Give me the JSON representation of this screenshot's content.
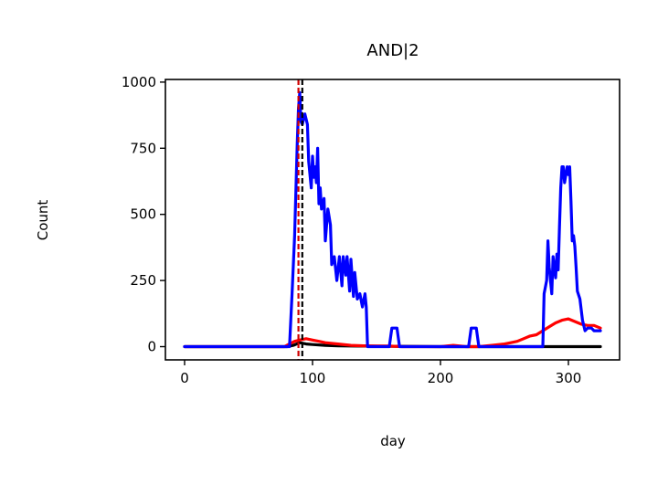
{
  "chart_data": {
    "type": "line",
    "title": "AND|2",
    "xlabel": "day",
    "ylabel": "Count",
    "xlim": [
      -15,
      340
    ],
    "ylim": [
      -50,
      1010
    ],
    "xticks": [
      0,
      100,
      200,
      300
    ],
    "yticks": [
      0,
      250,
      500,
      750,
      1000
    ],
    "xtick_labels": [
      "0",
      "100",
      "200",
      "300"
    ],
    "ytick_labels": [
      "0",
      "250",
      "500",
      "750",
      "1000"
    ],
    "grid": false,
    "legend": "none",
    "vlines": [
      {
        "x": 89,
        "color": "#d00000",
        "style": "dashed"
      },
      {
        "x": 92,
        "color": "#000000",
        "style": "dashed"
      }
    ],
    "series": [
      {
        "color": "#000000",
        "x": [
          0,
          80,
          85,
          90,
          95,
          100,
          110,
          120,
          140,
          200,
          300,
          325
        ],
        "values": [
          0,
          0,
          5,
          15,
          10,
          8,
          5,
          3,
          2,
          0,
          0,
          0
        ]
      },
      {
        "color": "#ff0000",
        "x": [
          0,
          78,
          82,
          86,
          90,
          95,
          100,
          105,
          110,
          120,
          130,
          140,
          150,
          160,
          170,
          180,
          200,
          210,
          220,
          230,
          240,
          250,
          255,
          260,
          265,
          270,
          275,
          280,
          285,
          290,
          295,
          300,
          305,
          310,
          315,
          320,
          325
        ],
        "values": [
          0,
          0,
          10,
          20,
          25,
          30,
          25,
          20,
          15,
          10,
          5,
          3,
          2,
          2,
          0,
          0,
          0,
          5,
          0,
          0,
          5,
          10,
          15,
          20,
          30,
          40,
          45,
          60,
          75,
          90,
          100,
          105,
          95,
          85,
          80,
          80,
          70
        ]
      },
      {
        "color": "#0000ff",
        "x": [
          0,
          82,
          84,
          86,
          88,
          89,
          90,
          91,
          92,
          94,
          96,
          97,
          99,
          100,
          101,
          102,
          103,
          104,
          105,
          106,
          107,
          109,
          110,
          112,
          114,
          115,
          117,
          119,
          121,
          123,
          124,
          126,
          127,
          129,
          130,
          132,
          133,
          135,
          137,
          139,
          141,
          142,
          143,
          145,
          150,
          160,
          162,
          164,
          166,
          168,
          170,
          172,
          175,
          180,
          190,
          200,
          210,
          215,
          222,
          224,
          226,
          228,
          230,
          232,
          240,
          250,
          260,
          270,
          280,
          281,
          283,
          284,
          285,
          287,
          288,
          290,
          291,
          292,
          293,
          294,
          295,
          296,
          297,
          299,
          300,
          301,
          302,
          303,
          304,
          305,
          306,
          307,
          309,
          311,
          313,
          315,
          318,
          320,
          325
        ],
        "values": [
          0,
          0,
          200,
          420,
          760,
          900,
          960,
          850,
          840,
          880,
          840,
          700,
          600,
          720,
          640,
          680,
          620,
          750,
          540,
          600,
          520,
          560,
          400,
          520,
          460,
          310,
          340,
          250,
          340,
          230,
          340,
          270,
          340,
          210,
          330,
          190,
          280,
          180,
          200,
          150,
          200,
          150,
          0,
          0,
          0,
          0,
          70,
          70,
          70,
          0,
          0,
          0,
          0,
          0,
          0,
          0,
          0,
          0,
          0,
          70,
          70,
          70,
          0,
          0,
          0,
          0,
          0,
          0,
          0,
          200,
          250,
          400,
          300,
          200,
          340,
          260,
          350,
          290,
          450,
          600,
          680,
          680,
          620,
          680,
          650,
          680,
          550,
          400,
          420,
          380,
          300,
          210,
          180,
          100,
          60,
          70,
          70,
          60,
          60
        ]
      }
    ]
  }
}
